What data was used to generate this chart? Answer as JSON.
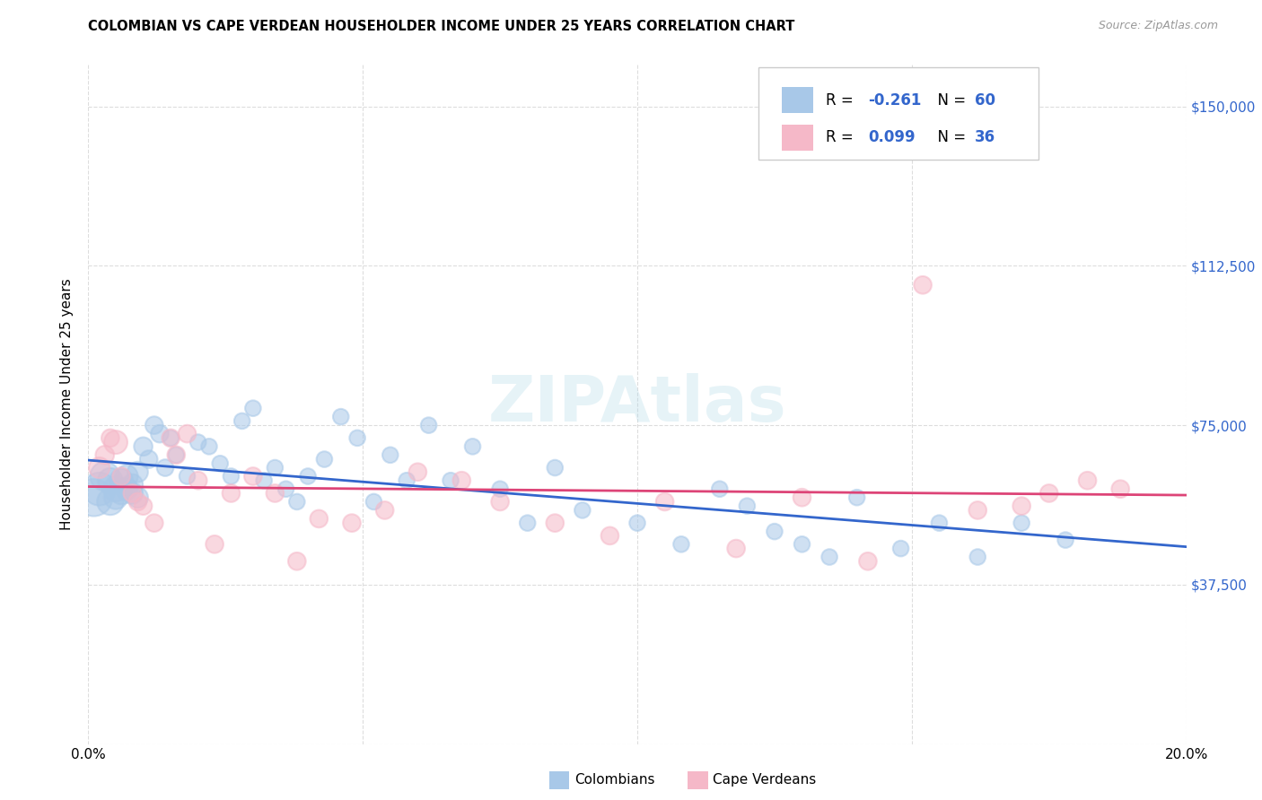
{
  "title": "COLOMBIAN VS CAPE VERDEAN HOUSEHOLDER INCOME UNDER 25 YEARS CORRELATION CHART",
  "source": "Source: ZipAtlas.com",
  "ylabel": "Householder Income Under 25 years",
  "xmin": 0.0,
  "xmax": 0.2,
  "ymin": 0,
  "ymax": 160000,
  "ytick_vals": [
    0,
    37500,
    75000,
    112500,
    150000
  ],
  "ytick_labels": [
    "",
    "$37,500",
    "$75,000",
    "$112,500",
    "$150,000"
  ],
  "xtick_vals": [
    0.0,
    0.05,
    0.1,
    0.15,
    0.2
  ],
  "xtick_labels": [
    "0.0%",
    "",
    "",
    "",
    "20.0%"
  ],
  "colombian_R": "-0.261",
  "colombian_N": "60",
  "capeverdean_R": "0.099",
  "capeverdean_N": "36",
  "blue_circle_color": "#A8C8E8",
  "pink_circle_color": "#F5B8C8",
  "blue_line_color": "#3366CC",
  "pink_line_color": "#DD4477",
  "legend_text_color": "#3366CC",
  "grid_color": "#DDDDDD",
  "bg_color": "#FFFFFF",
  "colombians_x": [
    0.001,
    0.002,
    0.003,
    0.004,
    0.004,
    0.005,
    0.005,
    0.006,
    0.006,
    0.007,
    0.007,
    0.008,
    0.008,
    0.009,
    0.009,
    0.01,
    0.011,
    0.012,
    0.013,
    0.014,
    0.015,
    0.016,
    0.018,
    0.02,
    0.022,
    0.024,
    0.026,
    0.028,
    0.03,
    0.032,
    0.034,
    0.036,
    0.038,
    0.04,
    0.043,
    0.046,
    0.049,
    0.052,
    0.055,
    0.058,
    0.062,
    0.066,
    0.07,
    0.075,
    0.08,
    0.085,
    0.09,
    0.1,
    0.108,
    0.115,
    0.12,
    0.125,
    0.13,
    0.135,
    0.14,
    0.148,
    0.155,
    0.162,
    0.17,
    0.178
  ],
  "colombians_y": [
    58000,
    60000,
    63000,
    62000,
    57000,
    60000,
    58000,
    62000,
    59000,
    60000,
    63000,
    59000,
    61000,
    58000,
    64000,
    70000,
    67000,
    75000,
    73000,
    65000,
    72000,
    68000,
    63000,
    71000,
    70000,
    66000,
    63000,
    76000,
    79000,
    62000,
    65000,
    60000,
    57000,
    63000,
    67000,
    77000,
    72000,
    57000,
    68000,
    62000,
    75000,
    62000,
    70000,
    60000,
    52000,
    65000,
    55000,
    52000,
    47000,
    60000,
    56000,
    50000,
    47000,
    44000,
    58000,
    46000,
    52000,
    44000,
    52000,
    48000
  ],
  "colombians_size": [
    900,
    700,
    550,
    400,
    450,
    400,
    350,
    350,
    320,
    300,
    320,
    290,
    290,
    270,
    270,
    220,
    200,
    200,
    200,
    180,
    160,
    160,
    160,
    160,
    160,
    160,
    160,
    160,
    160,
    160,
    160,
    160,
    160,
    160,
    160,
    160,
    160,
    160,
    160,
    160,
    160,
    160,
    160,
    160,
    160,
    160,
    160,
    160,
    160,
    160,
    160,
    160,
    160,
    160,
    160,
    160,
    160,
    160,
    160,
    160
  ],
  "capeverdeans_x": [
    0.002,
    0.003,
    0.004,
    0.005,
    0.006,
    0.008,
    0.009,
    0.01,
    0.012,
    0.015,
    0.016,
    0.018,
    0.02,
    0.023,
    0.026,
    0.03,
    0.034,
    0.038,
    0.042,
    0.048,
    0.054,
    0.06,
    0.068,
    0.075,
    0.085,
    0.095,
    0.105,
    0.118,
    0.13,
    0.142,
    0.152,
    0.162,
    0.17,
    0.175,
    0.182,
    0.188
  ],
  "capeverdeans_y": [
    65000,
    68000,
    72000,
    71000,
    63000,
    59000,
    57000,
    56000,
    52000,
    72000,
    68000,
    73000,
    62000,
    47000,
    59000,
    63000,
    59000,
    43000,
    53000,
    52000,
    55000,
    64000,
    62000,
    57000,
    52000,
    49000,
    57000,
    46000,
    58000,
    43000,
    108000,
    55000,
    56000,
    59000,
    62000,
    60000
  ],
  "capeverdeans_size": [
    280,
    220,
    200,
    350,
    200,
    200,
    200,
    200,
    200,
    200,
    200,
    200,
    200,
    200,
    200,
    200,
    200,
    200,
    200,
    200,
    200,
    200,
    200,
    200,
    200,
    200,
    200,
    200,
    200,
    200,
    200,
    200,
    200,
    200,
    200,
    200
  ]
}
